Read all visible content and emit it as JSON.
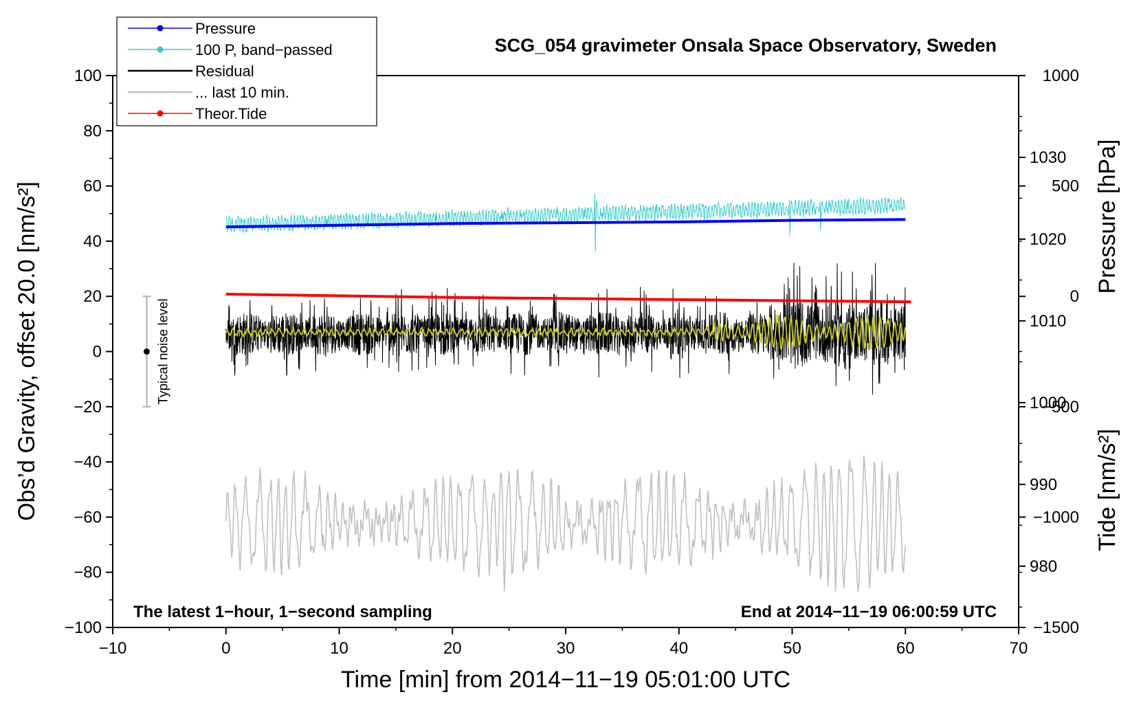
{
  "chart_data": {
    "type": "line",
    "title": "SCG_054 gravimeter Onsala Space Observatory, Sweden",
    "xlabel": "Time [min] from 2014−11−19 05:01:00 UTC",
    "ylabel_left": "Obs’d Gravity, offset 20.0 [nm/s²]",
    "ylabel_right_pressure": "Pressure [hPa]",
    "ylabel_right_tide": "Tide [nm/s²]",
    "xlim": [
      -10,
      70
    ],
    "ylim": [
      -100,
      100
    ],
    "x_ticks": [
      "−10",
      "0",
      "10",
      "20",
      "30",
      "40",
      "50",
      "60",
      "70"
    ],
    "x_tick_values": [
      -10,
      0,
      10,
      20,
      30,
      40,
      50,
      60,
      70
    ],
    "y_ticks": [
      "−100",
      "−80",
      "−60",
      "−40",
      "−20",
      "0",
      "20",
      "40",
      "60",
      "80",
      "100"
    ],
    "y_tick_values": [
      -100,
      -80,
      -60,
      -40,
      -20,
      0,
      20,
      40,
      60,
      80,
      100
    ],
    "pressure_axis": {
      "ticks": [
        "980",
        "990",
        "1000",
        "1010",
        "1020",
        "1030"
      ],
      "tick_values": [
        980,
        990,
        1000,
        1010,
        1020,
        1030
      ],
      "range_hpa": [
        972.5,
        1040
      ]
    },
    "tide_axis": {
      "ticks": [
        "−1500",
        "−1000",
        "−500",
        "0",
        "500",
        "1000"
      ],
      "tick_values": [
        -1500,
        -1000,
        -500,
        0,
        500,
        1000
      ],
      "range": [
        -1500,
        1000
      ]
    },
    "legend": [
      {
        "label": "Pressure",
        "color": "#0000ff",
        "marker": true
      },
      {
        "label": "100 P, band−passed",
        "color": "#33cccc",
        "marker": true
      },
      {
        "label": "Residual",
        "color": "#000000",
        "marker": false
      },
      {
        "label": "... last 10 min.",
        "color": "#c0c0c0",
        "marker": false
      },
      {
        "label": "Theor.Tide",
        "color": "#ff0000",
        "marker": true
      }
    ],
    "series": [
      {
        "name": "Pressure",
        "axis": "pressure_hpa",
        "color": "#0000ff",
        "x": [
          0,
          10,
          20,
          30,
          40,
          50,
          60
        ],
        "values": [
          1021.5,
          1021.7,
          1021.9,
          1022.0,
          1022.1,
          1022.3,
          1022.4
        ]
      },
      {
        "name": "100 P, band−passed",
        "axis": "left",
        "color": "#33cccc",
        "x_range": [
          0,
          60
        ],
        "trend": [
          46,
          53
        ],
        "amplitude": 2.5,
        "spikes": [
          {
            "x": 32.6,
            "max": 61,
            "min": 34
          },
          {
            "x": 49.8,
            "max": 59,
            "min": 42
          },
          {
            "x": 52.5,
            "max": 57,
            "min": 44
          }
        ]
      },
      {
        "name": "Residual",
        "axis": "left",
        "color": "#000000",
        "x_range": [
          0,
          60
        ],
        "mean": 6.5,
        "range": [
          -17,
          39
        ]
      },
      {
        "name": "Residual (smoothed)",
        "axis": "left",
        "color": "#cccc22",
        "x_range": [
          0,
          60
        ],
        "mean": 7,
        "range": [
          1,
          15
        ]
      },
      {
        "name": "... last 10 min.",
        "axis": "left",
        "color": "#c0c0c0",
        "x_range": [
          0,
          60
        ],
        "range": [
          -87,
          -30
        ],
        "mean": -62
      },
      {
        "name": "Theor.Tide",
        "axis": "tide",
        "color": "#ff0000",
        "x": [
          0,
          20,
          40,
          60.5
        ],
        "values": [
          10,
          -5,
          -15,
          -25
        ]
      }
    ],
    "noise_bar": {
      "x": -7,
      "center": 0,
      "low": -20,
      "high": 20,
      "label": "Typical noise level"
    },
    "annotations": {
      "bottom_left": "The latest 1−hour, 1−second sampling",
      "bottom_right": "End at 2014−11−19 06:00:59 UTC"
    },
    "grid": false,
    "legend_position": "top-left"
  }
}
